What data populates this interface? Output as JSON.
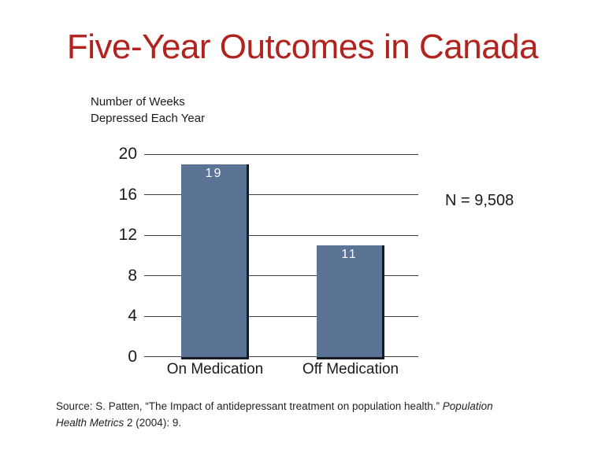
{
  "title": "Five-Year Outcomes in Canada",
  "colors": {
    "title": "#b0231e",
    "bar": "#5b7394",
    "bar_edge": "#141b26",
    "grid": "#3f3f3f",
    "text": "#1a1a1a",
    "bar_label": "#ffffff",
    "background": "#ffffff"
  },
  "chart_data": {
    "type": "bar",
    "title": "Five-Year Outcomes in Canada",
    "categories": [
      "On Medication",
      "Off Medication"
    ],
    "values": [
      19,
      11
    ],
    "bar_labels": [
      "19",
      "11"
    ],
    "ylabel_lines": [
      "Number of Weeks",
      "Depressed Each Year"
    ],
    "xlabel": "",
    "yticks": [
      0,
      4,
      8,
      12,
      16,
      20
    ],
    "ylim": [
      0,
      20
    ],
    "grid": true,
    "legend": false,
    "annotation": "N = 9,508"
  },
  "source": {
    "line1_normal": "Source: S. Patten, “The Impact of antidepressant treatment on population health.” ",
    "line1_italic": "Population",
    "line2_italic": "Health Metrics",
    "line2_normal": " 2 (2004): 9."
  }
}
